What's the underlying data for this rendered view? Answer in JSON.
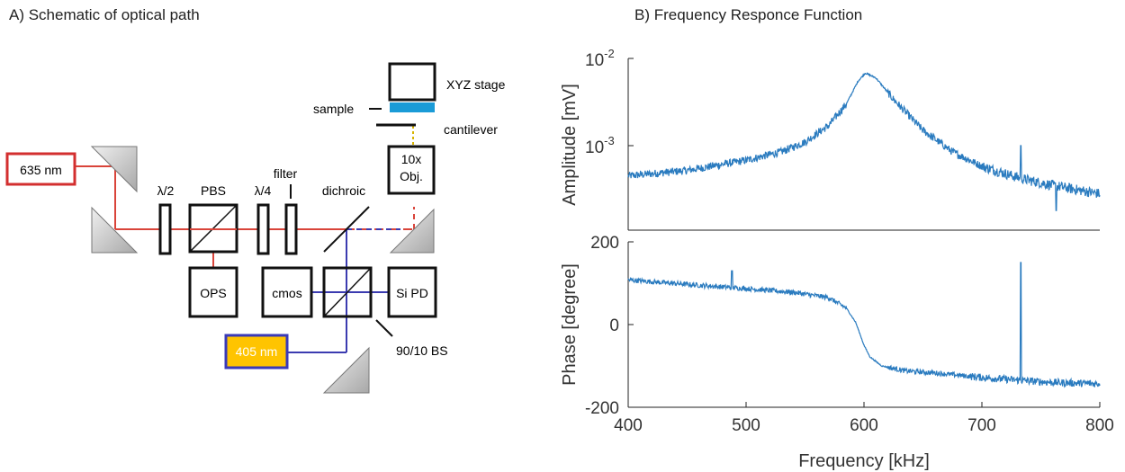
{
  "panel_a": {
    "title": "A) Schematic of optical path",
    "labels": {
      "laser_red": "635 nm",
      "laser_blue": "405 nm",
      "half_wave": "λ/2",
      "pbs": "PBS",
      "quarter_wave": "λ/4",
      "filter": "filter",
      "dichroic": "dichroic",
      "objective_line1": "10x",
      "objective_line2": "Obj.",
      "stage": "XYZ stage",
      "sample": "sample",
      "cantilever": "cantilever",
      "ops": "OPS",
      "cmos": "cmos",
      "si_pd": "Si PD",
      "bs": "90/10 BS"
    },
    "colors": {
      "red_beam": "#d9443a",
      "blue_beam": "#3b3bb0",
      "red_box": "#d32f2f",
      "blue_box": "#3a3ab8",
      "blue_laser_fill": "#ffc400",
      "cantilever": "#1a9bd7",
      "mirror": "#c8c8c8"
    }
  },
  "panel_b": {
    "title": "B) Frequency Responce Function",
    "line_color": "#2a7bbf",
    "xlabel": "Frequency [kHz]",
    "x_ticks": [
      "400",
      "500",
      "600",
      "700",
      "800"
    ],
    "amplitude": {
      "ylabel": "Amplitude [mV]",
      "y_ticks_base": [
        "10",
        "10"
      ],
      "y_ticks_exp": [
        "-2",
        "-3"
      ]
    },
    "phase": {
      "ylabel": "Phase [degree]",
      "y_ticks": [
        "200",
        "0",
        "-200"
      ]
    }
  },
  "chart_data": [
    {
      "type": "line",
      "title": "B) Frequency Responce Function",
      "xlabel": "Frequency [kHz]",
      "ylabel": "Amplitude [mV]",
      "yscale": "log",
      "xlim": [
        400,
        800
      ],
      "ylim": [
        0.00018,
        0.01
      ],
      "resonance_khz": 601,
      "x": [
        400,
        450,
        500,
        530,
        550,
        570,
        585,
        595,
        601,
        610,
        625,
        650,
        675,
        700,
        733,
        760,
        800
      ],
      "y": [
        0.00045,
        0.00052,
        0.00068,
        0.00085,
        0.0011,
        0.0017,
        0.003,
        0.0055,
        0.0068,
        0.006,
        0.0034,
        0.0015,
        0.00085,
        0.00058,
        0.00042,
        0.00035,
        0.00028
      ],
      "spikes": [
        {
          "x": 733,
          "y": 0.001
        },
        {
          "x": 763,
          "y": 0.00018
        }
      ]
    },
    {
      "type": "line",
      "xlabel": "Frequency [kHz]",
      "ylabel": "Phase [degree]",
      "xlim": [
        400,
        800
      ],
      "ylim": [
        -200,
        200
      ],
      "x": [
        400,
        450,
        500,
        540,
        570,
        585,
        593,
        600,
        605,
        615,
        635,
        660,
        700,
        733,
        760,
        800
      ],
      "y": [
        108,
        97,
        87,
        78,
        65,
        40,
        5,
        -50,
        -78,
        -100,
        -112,
        -117,
        -128,
        -135,
        -140,
        -143
      ],
      "spikes": [
        {
          "x": 488,
          "y": 130
        },
        {
          "x": 733,
          "y": 150
        }
      ]
    }
  ]
}
